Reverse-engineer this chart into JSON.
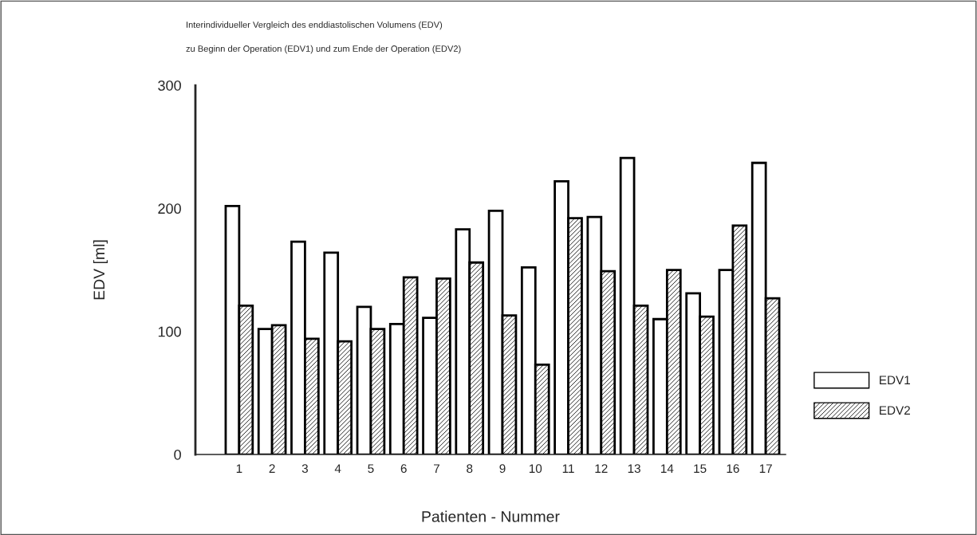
{
  "chart_data": {
    "type": "bar",
    "title": "Interindividueller Vergleich des enddiastolischen Volumens (EDV)",
    "subtitle": "zu Beginn der Operation (EDV1) und zum Ende der Operation (EDV2)",
    "xlabel": "Patienten - Nummer",
    "ylabel": "EDV [ml]",
    "categories": [
      "1",
      "2",
      "3",
      "4",
      "5",
      "6",
      "7",
      "8",
      "9",
      "10",
      "11",
      "12",
      "13",
      "14",
      "15",
      "16",
      "17"
    ],
    "series": [
      {
        "name": "EDV1",
        "color": "#ffffff",
        "values": [
          202,
          102,
          173,
          164,
          120,
          106,
          111,
          183,
          198,
          152,
          222,
          193,
          241,
          110,
          131,
          150,
          237
        ]
      },
      {
        "name": "EDV2",
        "color": "#000000",
        "values": [
          121,
          105,
          94,
          92,
          102,
          144,
          143,
          156,
          113,
          73,
          192,
          149,
          121,
          150,
          112,
          186,
          127
        ]
      }
    ],
    "ylim": [
      0,
      300
    ],
    "yticks": [
      0,
      100,
      200,
      300
    ],
    "grid": false,
    "legend": "right"
  }
}
